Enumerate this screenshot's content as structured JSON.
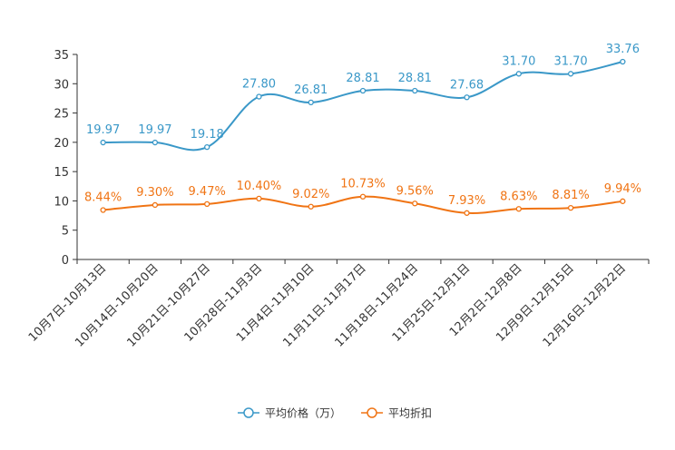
{
  "chart_data": {
    "type": "line",
    "categories": [
      "10月7日-10月13日",
      "10月14日-10月20日",
      "10月21日-10月27日",
      "10月28日-11月3日",
      "11月4日-11月10日",
      "11月11日-11月17日",
      "11月18日-11月24日",
      "11月25日-12月1日",
      "12月2日-12月8日",
      "12月9日-12月15日",
      "12月16日-12月22日"
    ],
    "series": [
      {
        "name": "平均价格（万）",
        "color": "#3a98c8",
        "values": [
          19.97,
          19.97,
          19.18,
          27.8,
          26.81,
          28.81,
          28.81,
          27.68,
          31.7,
          31.7,
          33.76
        ],
        "labels": [
          "19.97",
          "19.97",
          "19.18",
          "27.80",
          "26.81",
          "28.81",
          "28.81",
          "27.68",
          "31.70",
          "31.70",
          "33.76"
        ]
      },
      {
        "name": "平均折扣",
        "color": "#f07414",
        "values": [
          8.44,
          9.3,
          9.47,
          10.4,
          9.02,
          10.73,
          9.56,
          7.93,
          8.63,
          8.81,
          9.94
        ],
        "labels": [
          "8.44%",
          "9.30%",
          "9.47%",
          "10.40%",
          "9.02%",
          "10.73%",
          "9.56%",
          "7.93%",
          "8.63%",
          "8.81%",
          "9.94%"
        ]
      }
    ],
    "ylim": [
      0,
      35
    ],
    "yticks": [
      "0",
      "5",
      "10",
      "15",
      "20",
      "25",
      "30",
      "35"
    ],
    "legend_position": "bottom-center",
    "grid": false
  }
}
